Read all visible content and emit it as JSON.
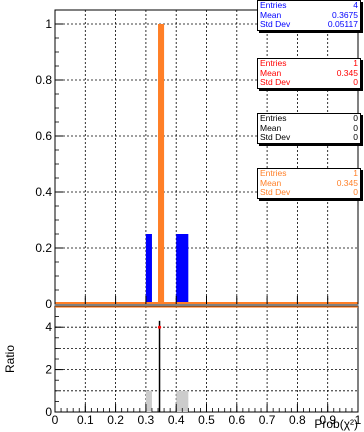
{
  "chart_data": [
    {
      "type": "bar",
      "panel": "main",
      "x_range": [
        0,
        1
      ],
      "ylim": [
        0,
        1.05
      ],
      "grid": true,
      "x_ticks": [
        "0",
        "0.1",
        "0.2",
        "0.3",
        "0.4",
        "0.5",
        "0.6",
        "0.7",
        "0.8",
        "0.9",
        "1"
      ],
      "y_ticks": [
        "0",
        "0.2",
        "0.4",
        "0.6",
        "0.8",
        "1"
      ],
      "series": [
        {
          "color": "#0000ff",
          "bins": [
            {
              "x_low": 0.3,
              "x_high": 0.32,
              "value": 0.25
            },
            {
              "x_low": 0.4,
              "x_high": 0.44,
              "value": 0.25
            }
          ]
        },
        {
          "color": "#ff7f27",
          "bins": [
            {
              "x_low": 0.34,
              "x_high": 0.36,
              "value": 1.0
            }
          ]
        }
      ]
    },
    {
      "type": "bar",
      "panel": "ratio",
      "ylabel": "Ratio",
      "xlabel": "Prob(χ²)",
      "x_range": [
        0,
        1
      ],
      "ylim": [
        0,
        5
      ],
      "grid": true,
      "y_ticks": [
        "0",
        "2",
        "4"
      ],
      "series": [
        {
          "color": "#cccccc",
          "bins": [
            {
              "x_low": 0.3,
              "x_high": 0.32,
              "value": 1.0
            },
            {
              "x_low": 0.4,
              "x_high": 0.44,
              "value": 1.0
            }
          ]
        },
        {
          "color": "#ff0000",
          "points": [
            {
              "x": 0.345,
              "y": 4.0
            }
          ]
        }
      ],
      "reference_line": {
        "x": 0.345,
        "color": "#000000"
      }
    }
  ],
  "stat_boxes": [
    {
      "color": "#0000ff",
      "rows": [
        {
          "label": "Entries",
          "value": "4"
        },
        {
          "label": "Mean",
          "value": "0.3675"
        },
        {
          "label": "Std Dev",
          "value": "0.05117"
        }
      ]
    },
    {
      "color": "#ff0000",
      "rows": [
        {
          "label": "Entries",
          "value": "1"
        },
        {
          "label": "Mean",
          "value": "0.345"
        },
        {
          "label": "Std Dev",
          "value": "0"
        }
      ]
    },
    {
      "color": "#000000",
      "rows": [
        {
          "label": "Entries",
          "value": "0"
        },
        {
          "label": "Mean",
          "value": "0"
        },
        {
          "label": "Std Dev",
          "value": "0"
        }
      ]
    },
    {
      "color": "#ff7f27",
      "rows": [
        {
          "label": "Entries",
          "value": "1"
        },
        {
          "label": "Mean",
          "value": "0.345"
        },
        {
          "label": "Std Dev",
          "value": "0"
        }
      ]
    }
  ]
}
